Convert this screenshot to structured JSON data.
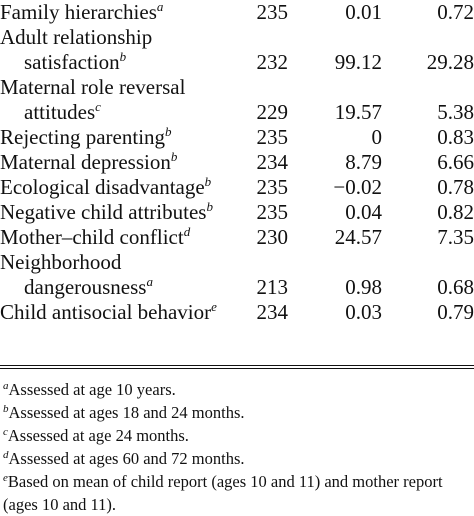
{
  "rows": [
    {
      "label": [
        "Family hierarchies"
      ],
      "fn": "a",
      "n": "235",
      "mean": "0.01",
      "sd": "0.72"
    },
    {
      "label": [
        "Adult relationship",
        "satisfaction"
      ],
      "fn": "b",
      "n": "232",
      "mean": "99.12",
      "sd": "29.28"
    },
    {
      "label": [
        "Maternal role reversal",
        "attitudes"
      ],
      "fn": "c",
      "n": "229",
      "mean": "19.57",
      "sd": "5.38"
    },
    {
      "label": [
        "Rejecting parenting"
      ],
      "fn": "b",
      "n": "235",
      "mean": "0",
      "sd": "0.83"
    },
    {
      "label": [
        "Maternal depression"
      ],
      "fn": "b",
      "n": "234",
      "mean": "8.79",
      "sd": "6.66"
    },
    {
      "label": [
        "Ecological disadvantage"
      ],
      "fn": "b",
      "n": "235",
      "mean": "−0.02",
      "sd": "0.78"
    },
    {
      "label": [
        "Negative child attributes"
      ],
      "fn": "b",
      "n": "235",
      "mean": "0.04",
      "sd": "0.82"
    },
    {
      "label": [
        "Mother–child conflict"
      ],
      "fn": "d",
      "n": "230",
      "mean": "24.57",
      "sd": "7.35"
    },
    {
      "label": [
        "Neighborhood",
        "dangerousness"
      ],
      "fn": "a",
      "n": "213",
      "mean": "0.98",
      "sd": "0.68"
    },
    {
      "label": [
        "Child antisocial behavior"
      ],
      "fn": "e",
      "n": "234",
      "mean": "0.03",
      "sd": "0.79"
    }
  ],
  "footnotes": [
    {
      "mark": "a",
      "text": "Assessed at age 10 years."
    },
    {
      "mark": "b",
      "text": "Assessed at ages 18 and 24 months."
    },
    {
      "mark": "c",
      "text": "Assessed at age 24 months."
    },
    {
      "mark": "d",
      "text": "Assessed at ages 60 and 72 months."
    },
    {
      "mark": "e",
      "text": "Based on mean of child report (ages 10 and 11) and mother report (ages 10 and 11)."
    }
  ]
}
